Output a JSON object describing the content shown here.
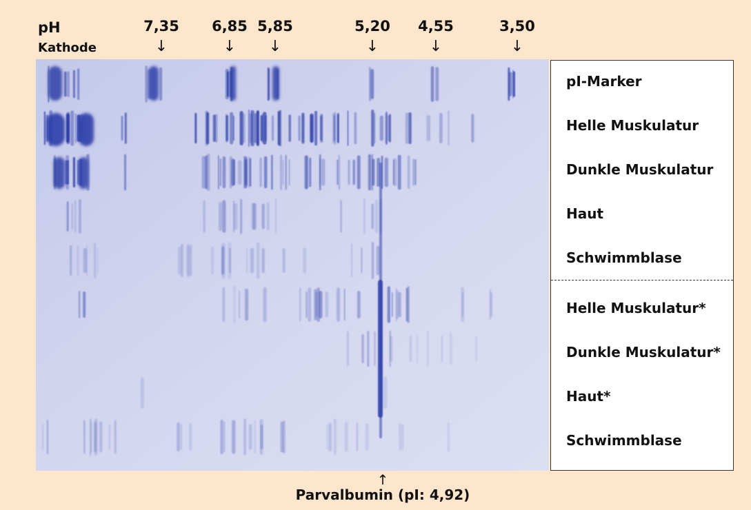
{
  "header": {
    "ph_label": "pH",
    "cathode_label": "Kathode",
    "markers": [
      "7,35",
      "6,85",
      "5,85",
      "5,20",
      "4,55",
      "3,50"
    ],
    "arrow_down": "↓",
    "arrow_up": "↑"
  },
  "legend": {
    "rows": [
      "pI-Marker",
      "Helle Muskulatur",
      "Dunkle Muskulatur",
      "Haut",
      "Schwimmblase",
      "Helle Muskulatur*",
      "Dunkle Muskulatur*",
      "Haut*",
      "Schwimmblase"
    ]
  },
  "footer": {
    "parvalbumin_label": "Parvalbumin (pI: 4,92)"
  },
  "colors": {
    "background": "#fde6cc",
    "gel_background": "#cfd3ed",
    "band": "#2e3fa8"
  }
}
